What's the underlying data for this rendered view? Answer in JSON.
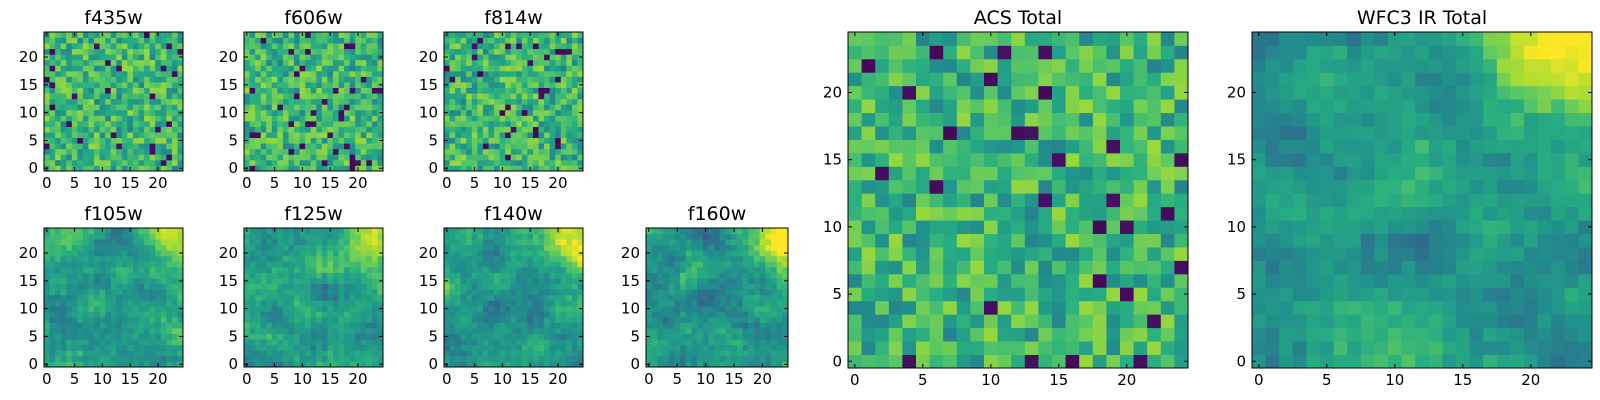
{
  "chart_data": [
    {
      "type": "heatmap",
      "title": "f435w",
      "xlim": [
        0,
        24
      ],
      "ylim": [
        0,
        24
      ],
      "xticks": [
        0,
        5,
        10,
        15,
        20
      ],
      "yticks": [
        0,
        5,
        10,
        15,
        20
      ],
      "colormap": "viridis",
      "pattern": "noise"
    },
    {
      "type": "heatmap",
      "title": "f606w",
      "xlim": [
        0,
        24
      ],
      "ylim": [
        0,
        24
      ],
      "xticks": [
        0,
        5,
        10,
        15,
        20
      ],
      "yticks": [
        0,
        5,
        10,
        15,
        20
      ],
      "colormap": "viridis",
      "pattern": "noise"
    },
    {
      "type": "heatmap",
      "title": "f814w",
      "xlim": [
        0,
        24
      ],
      "ylim": [
        0,
        24
      ],
      "xticks": [
        0,
        5,
        10,
        15,
        20
      ],
      "yticks": [
        0,
        5,
        10,
        15,
        20
      ],
      "colormap": "viridis",
      "pattern": "noise"
    },
    {
      "type": "heatmap",
      "title": "ACS Total",
      "xlim": [
        0,
        24
      ],
      "ylim": [
        0,
        24
      ],
      "xticks": [
        0,
        5,
        10,
        15,
        20
      ],
      "yticks": [
        0,
        5,
        10,
        15,
        20
      ],
      "colormap": "viridis",
      "pattern": "noise"
    },
    {
      "type": "heatmap",
      "title": "f105w",
      "xlim": [
        0,
        24
      ],
      "ylim": [
        0,
        24
      ],
      "xticks": [
        0,
        5,
        10,
        15,
        20
      ],
      "yticks": [
        0,
        5,
        10,
        15,
        20
      ],
      "colormap": "viridis",
      "pattern": "smooth"
    },
    {
      "type": "heatmap",
      "title": "f125w",
      "xlim": [
        0,
        24
      ],
      "ylim": [
        0,
        24
      ],
      "xticks": [
        0,
        5,
        10,
        15,
        20
      ],
      "yticks": [
        0,
        5,
        10,
        15,
        20
      ],
      "colormap": "viridis",
      "pattern": "smooth"
    },
    {
      "type": "heatmap",
      "title": "f140w",
      "xlim": [
        0,
        24
      ],
      "ylim": [
        0,
        24
      ],
      "xticks": [
        0,
        5,
        10,
        15,
        20
      ],
      "yticks": [
        0,
        5,
        10,
        15,
        20
      ],
      "colormap": "viridis",
      "pattern": "smooth"
    },
    {
      "type": "heatmap",
      "title": "f160w",
      "xlim": [
        0,
        24
      ],
      "ylim": [
        0,
        24
      ],
      "xticks": [
        0,
        5,
        10,
        15,
        20
      ],
      "yticks": [
        0,
        5,
        10,
        15,
        20
      ],
      "colormap": "viridis",
      "pattern": "smooth"
    },
    {
      "type": "heatmap",
      "title": "WFC3 IR Total",
      "xlim": [
        0,
        24
      ],
      "ylim": [
        0,
        24
      ],
      "xticks": [
        0,
        5,
        10,
        15,
        20
      ],
      "yticks": [
        0,
        5,
        10,
        15,
        20
      ],
      "colormap": "viridis",
      "pattern": "smooth"
    }
  ]
}
